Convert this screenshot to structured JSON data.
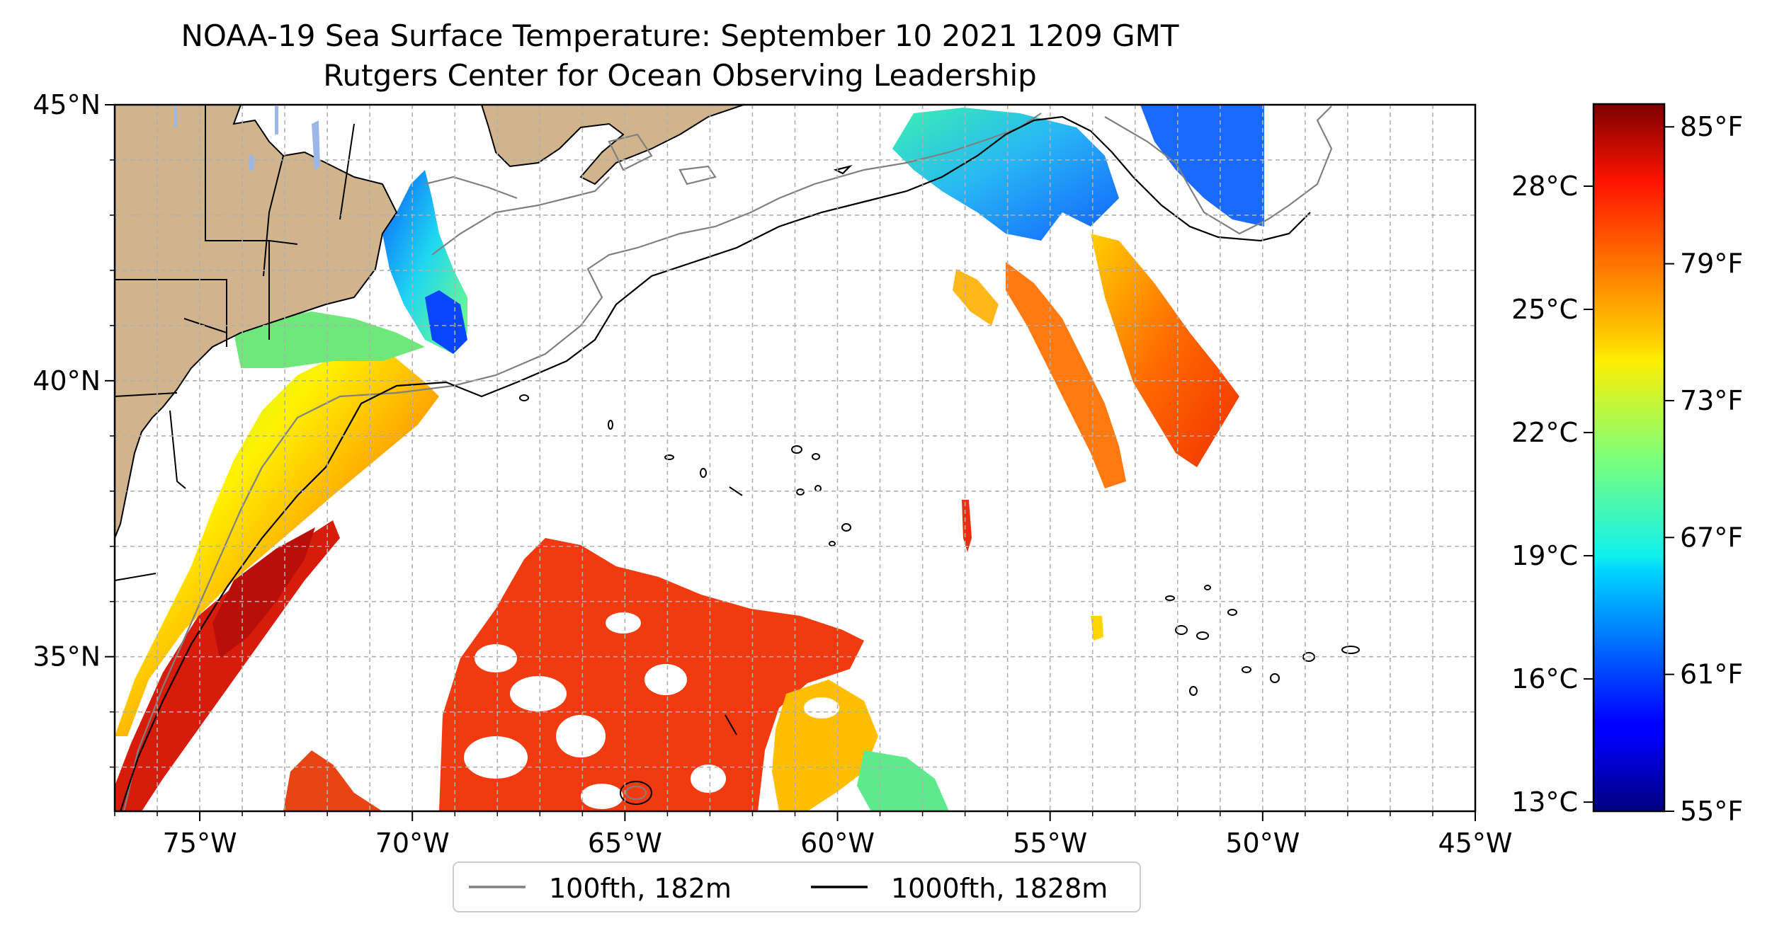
{
  "title": "NOAA-19 Sea Surface Temperature: September 10 2021 1209 GMT",
  "subtitle": "Rutgers Center for Ocean Observing Leadership",
  "map": {
    "lon_ticks": [
      {
        "value": -75,
        "label": "75°W"
      },
      {
        "value": -70,
        "label": "70°W"
      },
      {
        "value": -65,
        "label": "65°W"
      },
      {
        "value": -60,
        "label": "60°W"
      },
      {
        "value": -55,
        "label": "55°W"
      },
      {
        "value": -50,
        "label": "50°W"
      },
      {
        "value": -45,
        "label": "45°W"
      }
    ],
    "lat_ticks": [
      {
        "value": 45,
        "label": "45°N"
      },
      {
        "value": 40,
        "label": "40°N"
      },
      {
        "value": 35,
        "label": "35°N"
      }
    ],
    "lon_range": [
      -77,
      -45
    ],
    "lat_range": [
      32.2,
      45
    ],
    "gridlines": true,
    "land_color": "#d2b48c",
    "lake_color": "#9cb6e8"
  },
  "legend": {
    "placement": "bottom-center",
    "items": [
      {
        "label": "100fth, 182m",
        "color": "#808080"
      },
      {
        "label": "1000fth, 1828m",
        "color": "#000000"
      }
    ]
  },
  "colorbar": {
    "cmap": "jet",
    "range_f": [
      55,
      86
    ],
    "celsius_ticks": [
      {
        "value": 13,
        "label": "13°C"
      },
      {
        "value": 16,
        "label": "16°C"
      },
      {
        "value": 19,
        "label": "19°C"
      },
      {
        "value": 22,
        "label": "22°C"
      },
      {
        "value": 25,
        "label": "25°C"
      },
      {
        "value": 28,
        "label": "28°C"
      }
    ],
    "fahrenheit_ticks": [
      {
        "value": 55,
        "label": "55°F"
      },
      {
        "value": 61,
        "label": "61°F"
      },
      {
        "value": 67,
        "label": "67°F"
      },
      {
        "value": 73,
        "label": "73°F"
      },
      {
        "value": 79,
        "label": "79°F"
      },
      {
        "value": 85,
        "label": "85°F"
      }
    ]
  }
}
